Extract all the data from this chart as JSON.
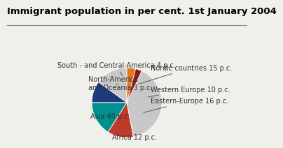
{
  "title": "Immigrant population in per cent. 1st January 2004",
  "slices": [
    {
      "label": "Nordic countries 15 p.c.",
      "value": 15,
      "color": "#c8c8c8"
    },
    {
      "label": "Western Europe 10 p.c.",
      "value": 10,
      "color": "#1e3a7a"
    },
    {
      "label": "Eastern-Europe 16 p.c.",
      "value": 16,
      "color": "#009090"
    },
    {
      "label": "Africa 12 p.c.",
      "value": 12,
      "color": "#c0392b"
    },
    {
      "label": "Asia 40 p.c.",
      "value": 40,
      "color": "#c8c8c8"
    },
    {
      "label": "North-America\nand Oceania 3 p.c.",
      "value": 3,
      "color": "#8b1a1a"
    },
    {
      "label": "South - and Central-America 4 p.c.",
      "value": 4,
      "color": "#e07820"
    }
  ],
  "start_angle": 90,
  "background_color": "#f0f0ea",
  "title_fontsize": 9.5,
  "label_fontsize": 7.0
}
